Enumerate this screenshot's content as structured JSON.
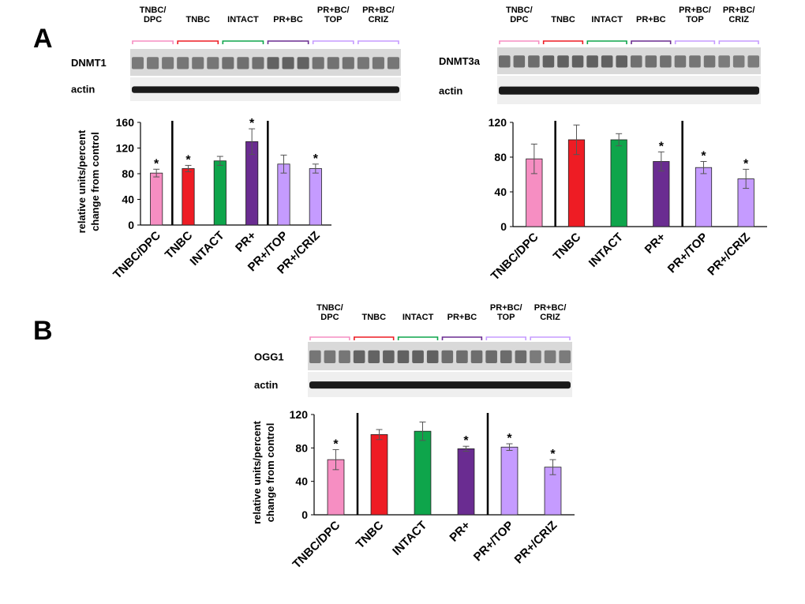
{
  "panels": [
    {
      "letter": "A"
    },
    {
      "letter": "B"
    }
  ],
  "colors": {
    "TNBC/DPC": "#f68ec2",
    "TNBC": "#ee1c24",
    "INTACT": "#0ea54b",
    "PR+": "#6a2c91",
    "PR+/TOP": "#c59bff",
    "PR+/CRIZ": "#c59bff"
  },
  "chart_data": [
    {
      "id": "dnmt1",
      "type": "bar",
      "blot_protein": "DNMT1",
      "blot_control": "actin",
      "lane_groups": [
        "TNBC/\nDPC",
        "TNBC",
        "INTACT",
        "PR+BC",
        "PR+BC/\nTOP",
        "PR+BC/\nCRIZ"
      ],
      "lane_colors": [
        "#f68ec2",
        "#ee1c24",
        "#0ea54b",
        "#6a2c91",
        "#c59bff",
        "#c59bff"
      ],
      "categories": [
        "TNBC/DPC",
        "TNBC",
        "INTACT",
        "PR+",
        "PR+/TOP",
        "PR+/CRIZ"
      ],
      "values": [
        81,
        88,
        100,
        130,
        95,
        88
      ],
      "errors": [
        6,
        5,
        7,
        20,
        14,
        7
      ],
      "significant": [
        true,
        true,
        false,
        true,
        false,
        true
      ],
      "yticks": [
        0,
        40,
        80,
        120,
        160
      ],
      "ylim": [
        0,
        160
      ],
      "ylabel": [
        "relative units/percent",
        "change from control"
      ],
      "dividers_after": [
        0,
        3
      ],
      "star": "*"
    },
    {
      "id": "dnmt3a",
      "type": "bar",
      "blot_protein": "DNMT3a",
      "blot_control": "actin",
      "lane_groups": [
        "TNBC/\nDPC",
        "TNBC",
        "INTACT",
        "PR+BC",
        "PR+BC/\nTOP",
        "PR+BC/\nCRIZ"
      ],
      "lane_colors": [
        "#f68ec2",
        "#ee1c24",
        "#0ea54b",
        "#6a2c91",
        "#c59bff",
        "#c59bff"
      ],
      "categories": [
        "TNBC/DPC",
        "TNBC",
        "INTACT",
        "PR+",
        "PR+/TOP",
        "PR+/CRIZ"
      ],
      "values": [
        78,
        100,
        100,
        75,
        68,
        55
      ],
      "errors": [
        17,
        17,
        7,
        11,
        7,
        11
      ],
      "significant": [
        false,
        false,
        false,
        true,
        true,
        true
      ],
      "yticks": [
        0,
        40,
        80,
        120
      ],
      "ylim": [
        0,
        120
      ],
      "ylabel": [],
      "dividers_after": [
        0,
        3
      ],
      "star": "*"
    },
    {
      "id": "ogg1",
      "type": "bar",
      "blot_protein": "OGG1",
      "blot_control": "actin",
      "lane_groups": [
        "TNBC/\nDPC",
        "TNBC",
        "INTACT",
        "PR+BC",
        "PR+BC/\nTOP",
        "PR+BC/\nCRIZ"
      ],
      "lane_colors": [
        "#f68ec2",
        "#ee1c24",
        "#0ea54b",
        "#6a2c91",
        "#c59bff",
        "#c59bff"
      ],
      "categories": [
        "TNBC/DPC",
        "TNBC",
        "INTACT",
        "PR+",
        "PR+/TOP",
        "PR+/CRIZ"
      ],
      "values": [
        66,
        96,
        100,
        79,
        81,
        57
      ],
      "errors": [
        12,
        6,
        11,
        3,
        4,
        9
      ],
      "significant": [
        true,
        false,
        false,
        true,
        true,
        true
      ],
      "yticks": [
        0,
        40,
        80,
        120
      ],
      "ylim": [
        0,
        120
      ],
      "ylabel": [
        "relative units/percent",
        "change from control"
      ],
      "dividers_after": [
        0,
        3
      ],
      "star": "*"
    }
  ]
}
